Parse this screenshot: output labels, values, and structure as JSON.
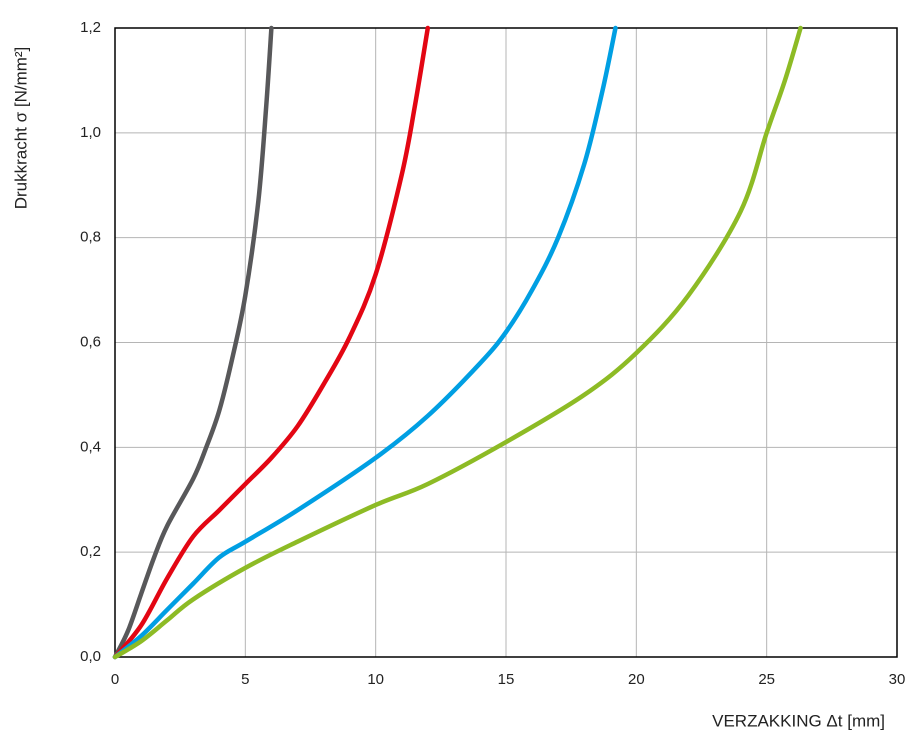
{
  "chart_data": {
    "type": "line",
    "x_label": "VERZAKKING Δt [mm]",
    "y_label": "Drukkracht σ [N/mm²]",
    "xlim": [
      0,
      30
    ],
    "xticks": [
      0,
      5,
      10,
      15,
      20,
      25,
      30
    ],
    "ylim": [
      0,
      1.2
    ],
    "yticks": [
      {
        "value": 0,
        "label": "0,0"
      },
      {
        "value": 0.2,
        "label": "0,2"
      },
      {
        "value": 0.4,
        "label": "0,4"
      },
      {
        "value": 0.6,
        "label": "0,6"
      },
      {
        "value": 0.8,
        "label": "0,8"
      },
      {
        "value": 1.0,
        "label": "1,0"
      },
      {
        "value": 1.2,
        "label": "1,2"
      }
    ],
    "grid": true,
    "series": [
      {
        "color": "#58585a",
        "x": [
          0,
          0.5,
          1,
          1.5,
          2,
          3,
          3.5,
          4,
          4.5,
          5,
          5.5,
          5.8,
          6
        ],
        "values": [
          0,
          0.05,
          0.12,
          0.19,
          0.25,
          0.34,
          0.4,
          0.47,
          0.57,
          0.69,
          0.87,
          1.05,
          1.2
        ]
      },
      {
        "color": "#e30613",
        "x": [
          0,
          1,
          2,
          3,
          4,
          5,
          6,
          7,
          8,
          9,
          10,
          11,
          11.5,
          12
        ],
        "values": [
          0,
          0.06,
          0.15,
          0.23,
          0.28,
          0.33,
          0.38,
          0.44,
          0.52,
          0.61,
          0.73,
          0.92,
          1.05,
          1.2
        ]
      },
      {
        "color": "#009fe3",
        "x": [
          0,
          1,
          2,
          3,
          4,
          5,
          7,
          10,
          12,
          14,
          15,
          16,
          17,
          18,
          18.7,
          19.2
        ],
        "values": [
          0,
          0.04,
          0.09,
          0.14,
          0.19,
          0.22,
          0.28,
          0.38,
          0.46,
          0.56,
          0.62,
          0.7,
          0.8,
          0.94,
          1.08,
          1.2
        ]
      },
      {
        "color": "#8dbb25",
        "x": [
          0,
          1,
          2,
          3,
          5,
          7,
          10,
          12,
          15,
          18,
          20,
          22,
          24,
          25,
          25.7,
          26.3
        ],
        "values": [
          0,
          0.03,
          0.07,
          0.11,
          0.17,
          0.22,
          0.29,
          0.33,
          0.41,
          0.5,
          0.58,
          0.69,
          0.85,
          1.0,
          1.1,
          1.2
        ]
      }
    ]
  }
}
